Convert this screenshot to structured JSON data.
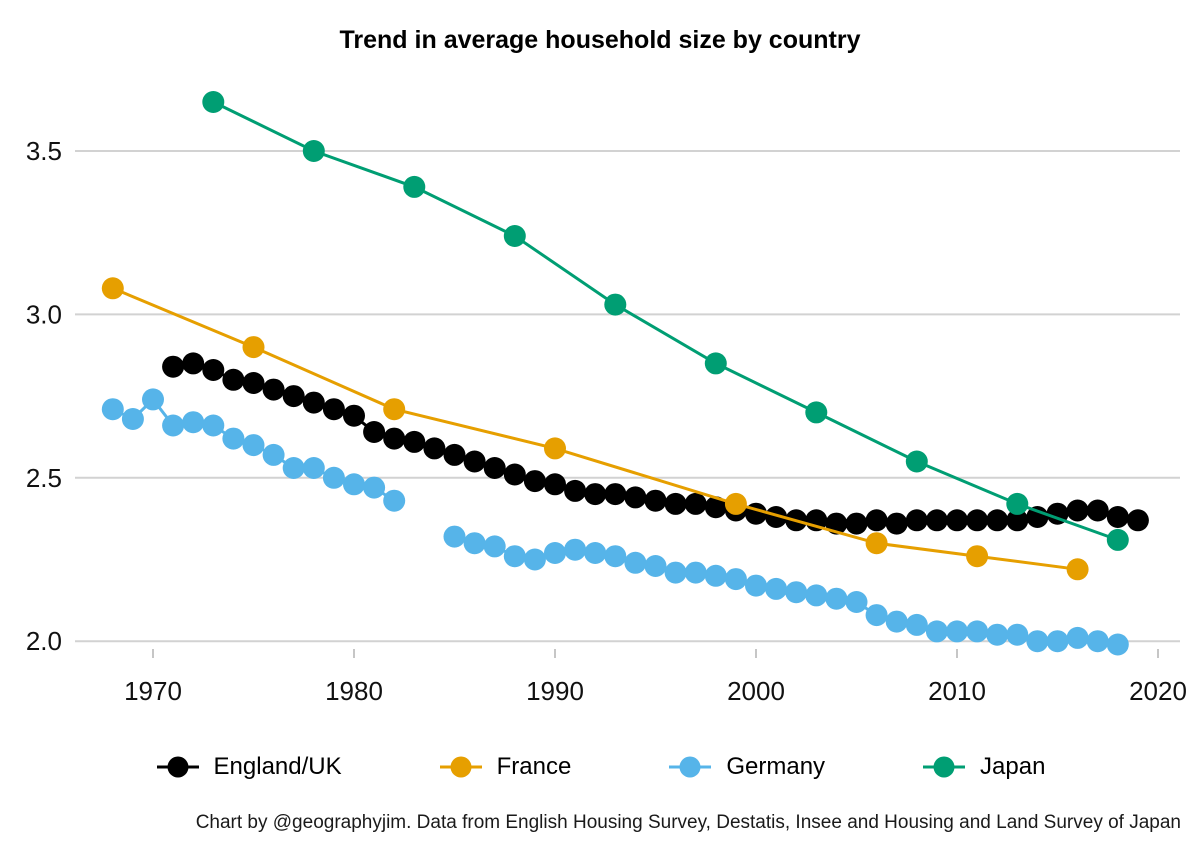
{
  "title": "Trend in average household size by country",
  "caption": "Chart by @geographyjim. Data from English Housing Survey, Destatis, Insee and Housing and Land Survey of Japan",
  "colors": {
    "england_uk": "#000000",
    "france": "#E69F00",
    "germany": "#56B4E9",
    "japan": "#009E73",
    "gridline": "#d2d2d2",
    "tick": "#c6c6c6",
    "axis_text": "#111111"
  },
  "chart_data": {
    "type": "line",
    "title": "Trend in average household size by country",
    "xlabel": "",
    "ylabel": "",
    "grid": "horizontal-only",
    "legend_position": "bottom",
    "xlim": [
      1966.1,
      2021.1
    ],
    "ylim": [
      1.98,
      3.72
    ],
    "x_axis": {
      "ticks": [
        1970,
        1980,
        1990,
        2000,
        2010,
        2020
      ]
    },
    "y_axis": {
      "ticks": [
        {
          "value": 3.5,
          "label": "3.5"
        },
        {
          "value": 3.0,
          "label": "3.0"
        },
        {
          "value": 2.5,
          "label": "2.5"
        },
        {
          "value": 2.0,
          "label": "2.0"
        }
      ]
    },
    "series": [
      {
        "name": "Germany",
        "color": "#56B4E9",
        "points": [
          [
            1968,
            2.71
          ],
          [
            1969,
            2.68
          ],
          [
            1970,
            2.74
          ],
          [
            1971,
            2.66
          ],
          [
            1972,
            2.67
          ],
          [
            1973,
            2.66
          ],
          [
            1974,
            2.62
          ],
          [
            1975,
            2.6
          ],
          [
            1976,
            2.57
          ],
          [
            1977,
            2.53
          ],
          [
            1978,
            2.53
          ],
          [
            1979,
            2.5
          ],
          [
            1980,
            2.48
          ],
          [
            1981,
            2.47
          ],
          [
            1982,
            2.43
          ],
          [
            1983,
            null
          ],
          [
            1984,
            null
          ],
          [
            1985,
            2.32
          ],
          [
            1986,
            2.3
          ],
          [
            1987,
            2.29
          ],
          [
            1988,
            2.26
          ],
          [
            1989,
            2.25
          ],
          [
            1990,
            2.27
          ],
          [
            1991,
            2.28
          ],
          [
            1992,
            2.27
          ],
          [
            1993,
            2.26
          ],
          [
            1994,
            2.24
          ],
          [
            1995,
            2.23
          ],
          [
            1996,
            2.21
          ],
          [
            1997,
            2.21
          ],
          [
            1998,
            2.2
          ],
          [
            1999,
            2.19
          ],
          [
            2000,
            2.17
          ],
          [
            2001,
            2.16
          ],
          [
            2002,
            2.15
          ],
          [
            2003,
            2.14
          ],
          [
            2004,
            2.13
          ],
          [
            2005,
            2.12
          ],
          [
            2006,
            2.08
          ],
          [
            2007,
            2.06
          ],
          [
            2008,
            2.05
          ],
          [
            2009,
            2.03
          ],
          [
            2010,
            2.03
          ],
          [
            2011,
            2.03
          ],
          [
            2012,
            2.02
          ],
          [
            2013,
            2.02
          ],
          [
            2014,
            2.0
          ],
          [
            2015,
            2.0
          ],
          [
            2016,
            2.01
          ],
          [
            2017,
            2.0
          ],
          [
            2018,
            1.99
          ]
        ]
      },
      {
        "name": "England/UK",
        "color": "#000000",
        "points": [
          [
            1971,
            2.84
          ],
          [
            1972,
            2.85
          ],
          [
            1973,
            2.83
          ],
          [
            1974,
            2.8
          ],
          [
            1975,
            2.79
          ],
          [
            1976,
            2.77
          ],
          [
            1977,
            2.75
          ],
          [
            1978,
            2.73
          ],
          [
            1979,
            2.71
          ],
          [
            1980,
            2.69
          ],
          [
            1981,
            2.64
          ],
          [
            1982,
            2.62
          ],
          [
            1983,
            2.61
          ],
          [
            1984,
            2.59
          ],
          [
            1985,
            2.57
          ],
          [
            1986,
            2.55
          ],
          [
            1987,
            2.53
          ],
          [
            1988,
            2.51
          ],
          [
            1989,
            2.49
          ],
          [
            1990,
            2.48
          ],
          [
            1991,
            2.46
          ],
          [
            1992,
            2.45
          ],
          [
            1993,
            2.45
          ],
          [
            1994,
            2.44
          ],
          [
            1995,
            2.43
          ],
          [
            1996,
            2.42
          ],
          [
            1997,
            2.42
          ],
          [
            1998,
            2.41
          ],
          [
            1999,
            2.4
          ],
          [
            2000,
            2.39
          ],
          [
            2001,
            2.38
          ],
          [
            2002,
            2.37
          ],
          [
            2003,
            2.37
          ],
          [
            2004,
            2.36
          ],
          [
            2005,
            2.36
          ],
          [
            2006,
            2.37
          ],
          [
            2007,
            2.36
          ],
          [
            2008,
            2.37
          ],
          [
            2009,
            2.37
          ],
          [
            2010,
            2.37
          ],
          [
            2011,
            2.37
          ],
          [
            2012,
            2.37
          ],
          [
            2013,
            2.37
          ],
          [
            2014,
            2.38
          ],
          [
            2015,
            2.39
          ],
          [
            2016,
            2.4
          ],
          [
            2017,
            2.4
          ],
          [
            2018,
            2.38
          ],
          [
            2019,
            2.37
          ]
        ]
      },
      {
        "name": "France",
        "color": "#E69F00",
        "points": [
          [
            1968,
            3.08
          ],
          [
            1975,
            2.9
          ],
          [
            1982,
            2.71
          ],
          [
            1990,
            2.59
          ],
          [
            1999,
            2.42
          ],
          [
            2006,
            2.3
          ],
          [
            2011,
            2.26
          ],
          [
            2016,
            2.22
          ]
        ]
      },
      {
        "name": "Japan",
        "color": "#009E73",
        "points": [
          [
            1973,
            3.65
          ],
          [
            1978,
            3.5
          ],
          [
            1983,
            3.39
          ],
          [
            1988,
            3.24
          ],
          [
            1993,
            3.03
          ],
          [
            1998,
            2.85
          ],
          [
            2003,
            2.7
          ],
          [
            2008,
            2.55
          ],
          [
            2013,
            2.42
          ],
          [
            2018,
            2.31
          ]
        ]
      }
    ],
    "legend_order": [
      "England/UK",
      "France",
      "Germany",
      "Japan"
    ]
  }
}
